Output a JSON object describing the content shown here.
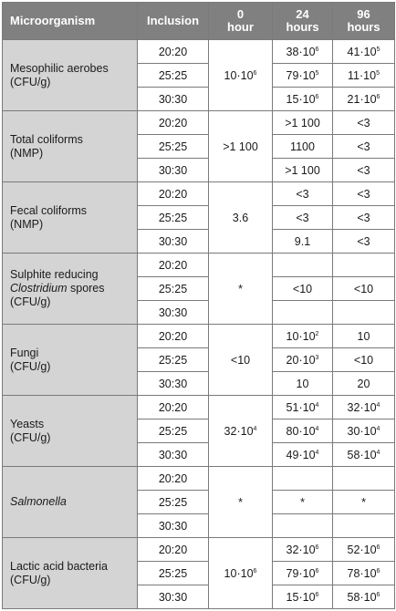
{
  "headers": {
    "microorganism": "Microorganism",
    "inclusion": "Inclusion",
    "h0": [
      "0",
      "hour"
    ],
    "h24": [
      "24",
      "hours"
    ],
    "h96": [
      "96",
      "hours"
    ]
  },
  "groups": [
    {
      "name_lines": [
        {
          "text": "Mesophilic aerobes"
        },
        {
          "text": "(CFU/g)"
        }
      ],
      "hour0": {
        "base": "10·10",
        "sup": "6"
      },
      "rows": [
        {
          "inclusion": "20:20",
          "h24": {
            "base": "38·10",
            "sup": "6"
          },
          "h96": {
            "base": "41·10",
            "sup": "5"
          }
        },
        {
          "inclusion": "25:25",
          "h24": {
            "base": "79·10",
            "sup": "5"
          },
          "h96": {
            "base": "11·10",
            "sup": "5"
          }
        },
        {
          "inclusion": "30:30",
          "h24": {
            "base": "15·10",
            "sup": "6"
          },
          "h96": {
            "base": "21·10",
            "sup": "6"
          }
        }
      ]
    },
    {
      "name_lines": [
        {
          "text": "Total coliforms"
        },
        {
          "text": "(NMP)"
        }
      ],
      "hour0": {
        "base": ">1 100"
      },
      "rows": [
        {
          "inclusion": "20:20",
          "h24": {
            "base": ">1 100"
          },
          "h96": {
            "base": "<3"
          }
        },
        {
          "inclusion": "25:25",
          "h24": {
            "base": "1100"
          },
          "h96": {
            "base": "<3"
          }
        },
        {
          "inclusion": "30:30",
          "h24": {
            "base": ">1 100"
          },
          "h96": {
            "base": "<3"
          }
        }
      ]
    },
    {
      "name_lines": [
        {
          "text": "Fecal coliforms"
        },
        {
          "text": "(NMP)"
        }
      ],
      "hour0": {
        "base": "3.6"
      },
      "rows": [
        {
          "inclusion": "20:20",
          "h24": {
            "base": "<3"
          },
          "h96": {
            "base": "<3"
          }
        },
        {
          "inclusion": "25:25",
          "h24": {
            "base": "<3"
          },
          "h96": {
            "base": "<3"
          }
        },
        {
          "inclusion": "30:30",
          "h24": {
            "base": "9.1"
          },
          "h96": {
            "base": "<3"
          }
        }
      ]
    },
    {
      "name_lines": [
        {
          "text": "Sulphite reducing"
        },
        {
          "italic": "Clostridium",
          "text": " spores"
        },
        {
          "text": "(CFU/g)"
        }
      ],
      "hour0": {
        "base": "*"
      },
      "rows": [
        {
          "inclusion": "20:20",
          "h24": {
            "base": ""
          },
          "h96": {
            "base": ""
          }
        },
        {
          "inclusion": "25:25",
          "h24": {
            "base": "<10"
          },
          "h96": {
            "base": "<10"
          }
        },
        {
          "inclusion": "30:30",
          "h24": {
            "base": ""
          },
          "h96": {
            "base": ""
          }
        }
      ]
    },
    {
      "name_lines": [
        {
          "text": "Fungi"
        },
        {
          "text": "(CFU/g)"
        }
      ],
      "hour0": {
        "base": "<10"
      },
      "rows": [
        {
          "inclusion": "20:20",
          "h24": {
            "base": "10·10",
            "sup": "2"
          },
          "h96": {
            "base": "10"
          }
        },
        {
          "inclusion": "25:25",
          "h24": {
            "base": "20·10",
            "sup": "3"
          },
          "h96": {
            "base": "<10"
          }
        },
        {
          "inclusion": "30:30",
          "h24": {
            "base": "10"
          },
          "h96": {
            "base": "20"
          }
        }
      ]
    },
    {
      "name_lines": [
        {
          "text": "Yeasts"
        },
        {
          "text": "(CFU/g)"
        }
      ],
      "hour0": {
        "base": "32·10",
        "sup": "4"
      },
      "rows": [
        {
          "inclusion": "20:20",
          "h24": {
            "base": "51·10",
            "sup": "4"
          },
          "h96": {
            "base": "32·10",
            "sup": "4"
          }
        },
        {
          "inclusion": "25:25",
          "h24": {
            "base": "80·10",
            "sup": "4"
          },
          "h96": {
            "base": "30·10",
            "sup": "4"
          }
        },
        {
          "inclusion": "30:30",
          "h24": {
            "base": "49·10",
            "sup": "4"
          },
          "h96": {
            "base": "58·10",
            "sup": "4"
          }
        }
      ]
    },
    {
      "name_lines": [
        {
          "italic": "Salmonella",
          "text": ""
        }
      ],
      "hour0": {
        "base": "*"
      },
      "rows": [
        {
          "inclusion": "20:20",
          "h24": {
            "base": ""
          },
          "h96": {
            "base": ""
          }
        },
        {
          "inclusion": "25:25",
          "h24": {
            "base": "*"
          },
          "h96": {
            "base": "*"
          }
        },
        {
          "inclusion": "30:30",
          "h24": {
            "base": ""
          },
          "h96": {
            "base": ""
          }
        }
      ]
    },
    {
      "name_lines": [
        {
          "text": "Lactic acid bacteria"
        },
        {
          "text": "(CFU/g)"
        }
      ],
      "hour0": {
        "base": "10·10",
        "sup": "6"
      },
      "rows": [
        {
          "inclusion": "20:20",
          "h24": {
            "base": "32·10",
            "sup": "6"
          },
          "h96": {
            "base": "52·10",
            "sup": "6"
          }
        },
        {
          "inclusion": "25:25",
          "h24": {
            "base": "79·10",
            "sup": "6"
          },
          "h96": {
            "base": "78·10",
            "sup": "6"
          }
        },
        {
          "inclusion": "30:30",
          "h24": {
            "base": "15·10",
            "sup": "6"
          },
          "h96": {
            "base": "58·10",
            "sup": "6"
          }
        }
      ]
    }
  ]
}
